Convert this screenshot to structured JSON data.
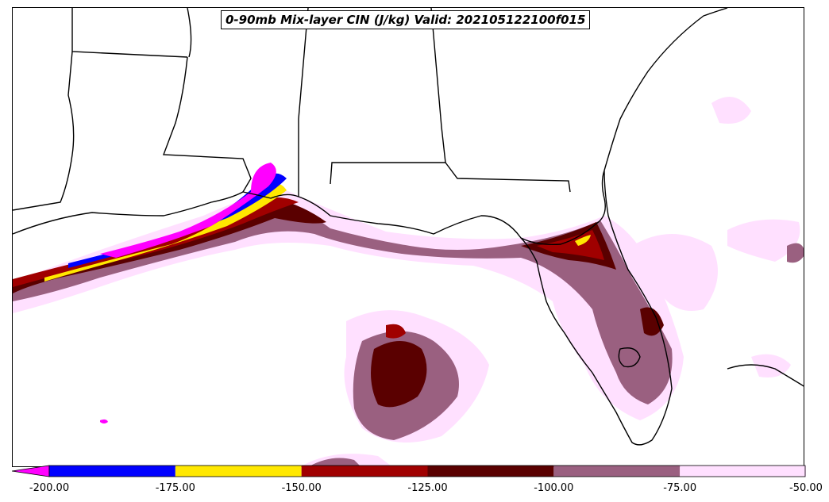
{
  "title": "0-90mb Mix-layer CIN (J/kg) Valid: 202105122100f015",
  "colorbar": {
    "ticks": [
      "-200.00",
      "-175.00",
      "-150.00",
      "-125.00",
      "-100.00",
      "-75.00",
      "-50.00"
    ],
    "bins": [
      {
        "range": "< -200",
        "color": "#ff00ff"
      },
      {
        "range": "-200 to -175",
        "color": "#0000ff"
      },
      {
        "range": "-175 to -150",
        "color": "#ffe800"
      },
      {
        "range": "-150 to -125",
        "color": "#a00000"
      },
      {
        "range": "-125 to -100",
        "color": "#5a0000"
      },
      {
        "range": "-100 to -75",
        "color": "#9a6080"
      },
      {
        "range": "-75 to -50",
        "color": "#ffe0ff"
      }
    ],
    "extend": "min"
  },
  "map": {
    "region": "Gulf of Mexico / Southeastern United States",
    "coastline_color": "#000000"
  }
}
